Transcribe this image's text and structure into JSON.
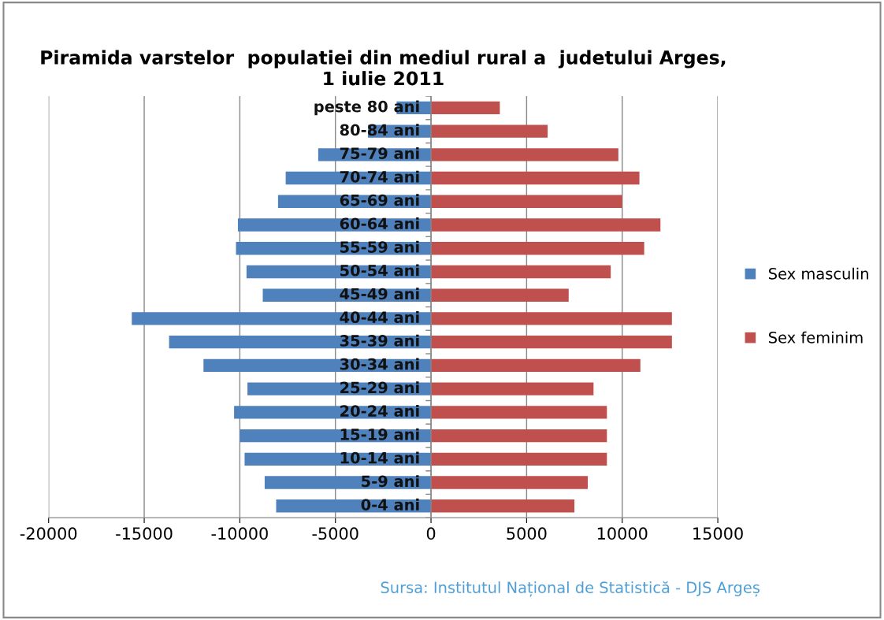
{
  "chart_data": {
    "type": "bar",
    "orientation": "horizontal",
    "stacked": true,
    "title": "Piramida varstelor  populatiei din mediul rural a  judetului Arges,\n1 iulie 2011",
    "categories": [
      "peste 80 ani",
      "80-84 ani",
      "75-79 ani",
      "70-74 ani",
      "65-69 ani",
      "60-64 ani",
      "55-59 ani",
      "50-54 ani",
      "45-49 ani",
      "40-44 ani",
      "35-39 ani",
      "30-34 ani",
      "25-29 ani",
      "20-24 ani",
      "15-19 ani",
      "10-14 ani",
      "5-9 ani",
      "0-4 ani"
    ],
    "series": [
      {
        "name": "Sex masculin",
        "color": "#4f81bd",
        "values": [
          -1800,
          -3300,
          -5900,
          -7600,
          -8000,
          -10100,
          -10200,
          -9650,
          -8800,
          -15650,
          -13700,
          -11900,
          -9600,
          -10300,
          -10000,
          -9750,
          -8700,
          -8100
        ]
      },
      {
        "name": "Sex feminim",
        "color": "#c0504d",
        "values": [
          3600,
          6100,
          9800,
          10900,
          10000,
          12000,
          11150,
          9400,
          7200,
          12600,
          12600,
          10950,
          8500,
          9200,
          9200,
          9200,
          8200,
          7500
        ]
      }
    ],
    "xlim": [
      -20000,
      15000
    ],
    "xticks": [
      -20000,
      -15000,
      -10000,
      -5000,
      0,
      5000,
      10000,
      15000
    ],
    "grid": "x",
    "legend": "right",
    "annotations": [
      "Sursa: Institutul Național de Statistică - DJS Argeș"
    ]
  }
}
